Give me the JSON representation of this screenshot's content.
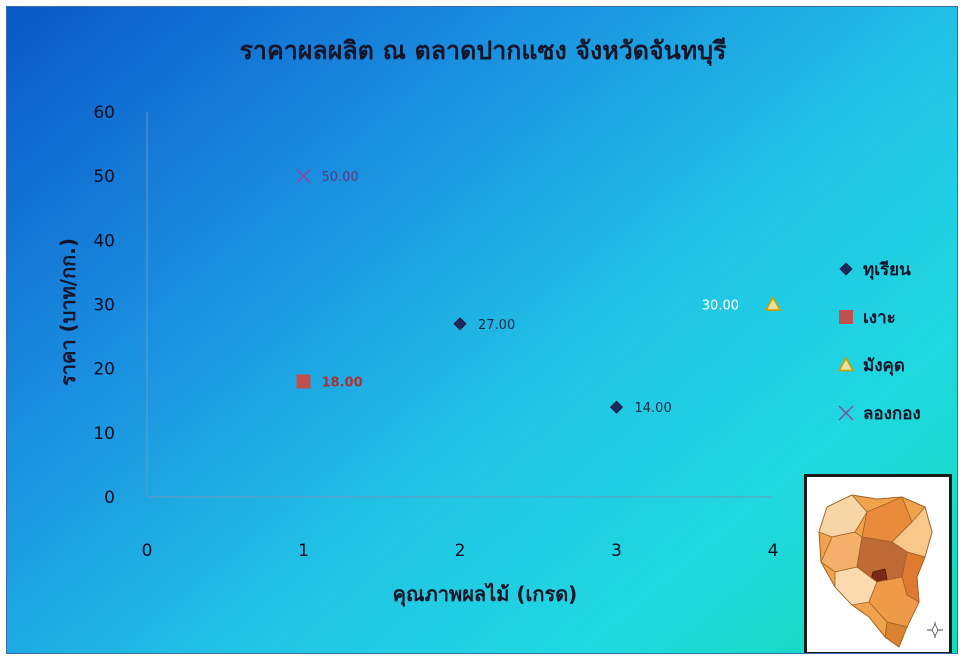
{
  "chart_data": {
    "type": "scatter",
    "title": "ราคาผลผลิต  ณ  ตลาดปากแซง   จังหวัดจันทบุรี",
    "xlabel": "คุณภาพผลไม้  (เกรด)",
    "ylabel": "ราคา  (บาท/กก.)",
    "xlim": [
      0,
      4
    ],
    "ylim": [
      0,
      60
    ],
    "x_ticks": [
      "0",
      "1",
      "2",
      "3",
      "4"
    ],
    "y_ticks": [
      "0",
      "10",
      "20",
      "30",
      "40",
      "50",
      "60"
    ],
    "grid": false,
    "legend_position": "right",
    "series": [
      {
        "name": "ทุเรียน",
        "marker": "diamond",
        "color": "#1f2a5c",
        "points": [
          {
            "x": 2,
            "y": 27,
            "label": "27.00"
          },
          {
            "x": 3,
            "y": 14,
            "label": "14.00"
          }
        ]
      },
      {
        "name": "เงาะ",
        "marker": "square",
        "color": "#c0504d",
        "points": [
          {
            "x": 1,
            "y": 18,
            "label": "18.00"
          }
        ]
      },
      {
        "name": "มังคุด",
        "marker": "triangle",
        "color": "#e8e0a0",
        "points": [
          {
            "x": 4,
            "y": 30,
            "label": "30.00"
          }
        ]
      },
      {
        "name": "ลองกอง",
        "marker": "x",
        "color": "#8a4a9a",
        "points": [
          {
            "x": 1,
            "y": 50,
            "label": "50.00"
          }
        ]
      }
    ]
  },
  "map_image": {
    "description_icon": "chanthaburi-province-map"
  }
}
